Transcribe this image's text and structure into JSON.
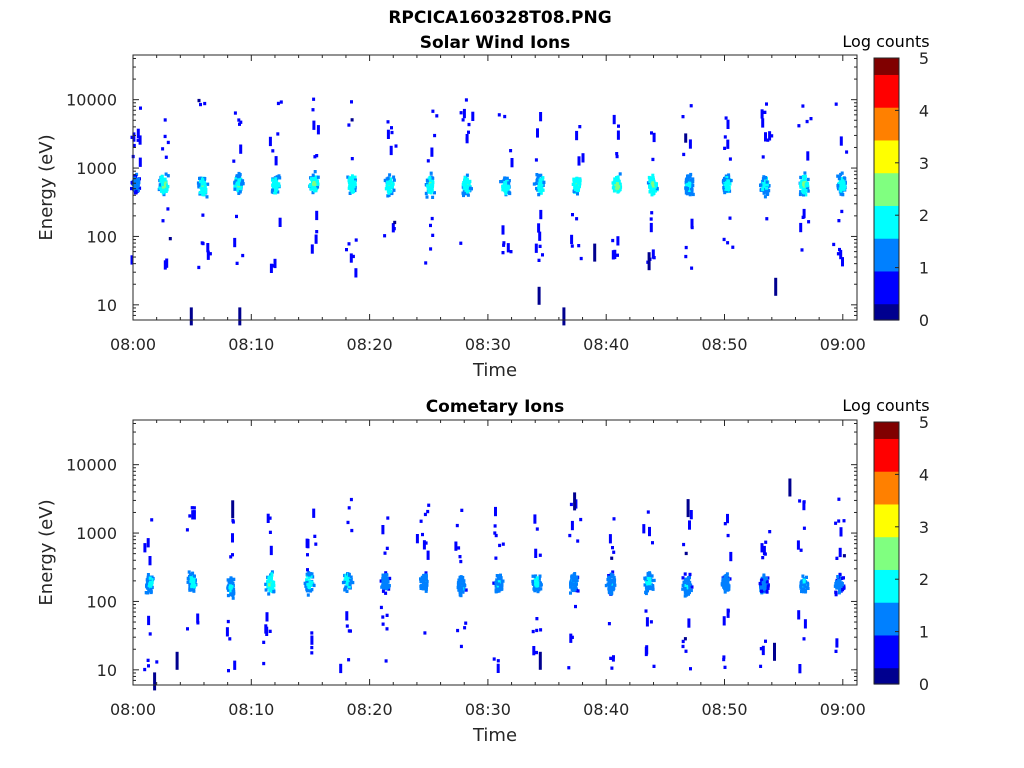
{
  "figure_title": "RPCICA160328T08.PNG",
  "colorbar": {
    "label": "Log counts",
    "ticks": [
      "0",
      "1",
      "2",
      "3",
      "4",
      "5"
    ],
    "range": [
      0,
      5
    ],
    "colormap": [
      "#00008f",
      "#0000ff",
      "#0080ff",
      "#00ffff",
      "#80ff80",
      "#ffff00",
      "#ff8000",
      "#ff0000",
      "#800000"
    ]
  },
  "chart_data": [
    {
      "type": "heatmap",
      "title": "Solar Wind Ions",
      "xlabel": "Time",
      "ylabel": "Energy (eV)",
      "x_ticks": [
        "08:00",
        "08:10",
        "08:20",
        "08:30",
        "08:40",
        "08:50",
        "09:00"
      ],
      "x_tick_minutes": [
        0,
        10,
        20,
        30,
        40,
        50,
        60
      ],
      "xlim_minutes": [
        0,
        61.2
      ],
      "y_scale": "log",
      "y_ticks": [
        "10",
        "100",
        "1000",
        "10000"
      ],
      "y_tick_values": [
        10,
        100,
        1000,
        10000
      ],
      "ylim": [
        6,
        45000
      ],
      "grid": false,
      "bursts": [
        {
          "t": 0.1,
          "e": 620,
          "max": 1.3
        },
        {
          "t": 2.5,
          "e": 600,
          "max": 2.5
        },
        {
          "t": 5.8,
          "e": 580,
          "max": 2.3
        },
        {
          "t": 8.8,
          "e": 590,
          "max": 2.2
        },
        {
          "t": 11.9,
          "e": 600,
          "max": 2.2
        },
        {
          "t": 15.2,
          "e": 620,
          "max": 2.4
        },
        {
          "t": 18.4,
          "e": 610,
          "max": 2.3
        },
        {
          "t": 21.6,
          "e": 600,
          "max": 2.3
        },
        {
          "t": 25.0,
          "e": 580,
          "max": 2.3
        },
        {
          "t": 28.1,
          "e": 600,
          "max": 2.2
        },
        {
          "t": 31.4,
          "e": 560,
          "max": 2.2
        },
        {
          "t": 34.3,
          "e": 600,
          "max": 2.2
        },
        {
          "t": 37.4,
          "e": 600,
          "max": 2.4
        },
        {
          "t": 40.8,
          "e": 580,
          "max": 2.6
        },
        {
          "t": 43.8,
          "e": 600,
          "max": 2.5
        },
        {
          "t": 46.9,
          "e": 590,
          "max": 2.0
        },
        {
          "t": 50.1,
          "e": 600,
          "max": 2.0
        },
        {
          "t": 53.3,
          "e": 590,
          "max": 2.0
        },
        {
          "t": 56.6,
          "e": 600,
          "max": 2.4
        },
        {
          "t": 59.8,
          "e": 600,
          "max": 2.1
        }
      ],
      "isolated": [
        {
          "t": 4.8,
          "e": 7
        },
        {
          "t": 8.9,
          "e": 7
        },
        {
          "t": 34.2,
          "e": 14
        },
        {
          "t": 36.3,
          "e": 7
        },
        {
          "t": 54.2,
          "e": 19
        },
        {
          "t": 43.5,
          "e": 45
        },
        {
          "t": 38.9,
          "e": 60
        }
      ]
    },
    {
      "type": "heatmap",
      "title": "Cometary Ions",
      "xlabel": "Time",
      "ylabel": "Energy (eV)",
      "x_ticks": [
        "08:00",
        "08:10",
        "08:20",
        "08:30",
        "08:40",
        "08:50",
        "09:00"
      ],
      "x_tick_minutes": [
        0,
        10,
        20,
        30,
        40,
        50,
        60
      ],
      "xlim_minutes": [
        0,
        61.2
      ],
      "y_scale": "log",
      "y_ticks": [
        "10",
        "100",
        "1000",
        "10000"
      ],
      "y_tick_values": [
        10,
        100,
        1000,
        10000
      ],
      "ylim": [
        6,
        45000
      ],
      "grid": false,
      "bursts": [
        {
          "t": 1.3,
          "e": 190,
          "max": 1.9
        },
        {
          "t": 4.9,
          "e": 200,
          "max": 2.0
        },
        {
          "t": 8.2,
          "e": 170,
          "max": 1.9
        },
        {
          "t": 11.5,
          "e": 190,
          "max": 2.3
        },
        {
          "t": 14.8,
          "e": 200,
          "max": 2.1
        },
        {
          "t": 18.0,
          "e": 210,
          "max": 2.0
        },
        {
          "t": 21.2,
          "e": 200,
          "max": 1.5
        },
        {
          "t": 24.5,
          "e": 200,
          "max": 1.6
        },
        {
          "t": 27.6,
          "e": 180,
          "max": 1.8
        },
        {
          "t": 30.8,
          "e": 190,
          "max": 1.7
        },
        {
          "t": 34.0,
          "e": 200,
          "max": 1.9
        },
        {
          "t": 37.1,
          "e": 200,
          "max": 1.7
        },
        {
          "t": 40.3,
          "e": 190,
          "max": 1.6
        },
        {
          "t": 43.5,
          "e": 200,
          "max": 1.8
        },
        {
          "t": 46.7,
          "e": 180,
          "max": 1.8
        },
        {
          "t": 50.0,
          "e": 200,
          "max": 1.5
        },
        {
          "t": 53.2,
          "e": 190,
          "max": 1.4
        },
        {
          "t": 56.6,
          "e": 190,
          "max": 1.7
        },
        {
          "t": 59.6,
          "e": 190,
          "max": 1.4
        }
      ],
      "isolated": [
        {
          "t": 1.7,
          "e": 7
        },
        {
          "t": 3.6,
          "e": 14
        },
        {
          "t": 34.3,
          "e": 14
        },
        {
          "t": 54.1,
          "e": 19
        },
        {
          "t": 55.4,
          "e": 4800
        },
        {
          "t": 46.8,
          "e": 2400
        },
        {
          "t": 37.2,
          "e": 3000
        },
        {
          "t": 8.3,
          "e": 2300
        }
      ]
    }
  ]
}
